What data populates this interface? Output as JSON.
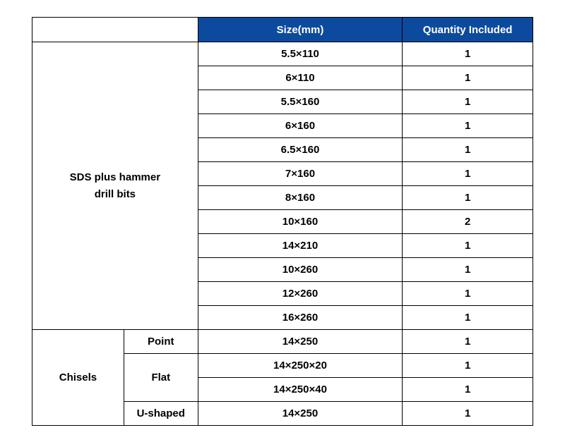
{
  "table": {
    "header": {
      "size": "Size(mm)",
      "quantity": "Quantity Included"
    },
    "colors": {
      "header_bg": "#0c4a9e",
      "header_text": "#ffffff",
      "border": "#000000",
      "cell_bg": "#ffffff",
      "cell_text": "#000000"
    },
    "font": {
      "family": "Arial",
      "size_pt": 15,
      "weight": "bold"
    },
    "sections": [
      {
        "category": "SDS plus hammer drill bits",
        "rows": [
          {
            "size": "5.5×110",
            "qty": "1"
          },
          {
            "size": "6×110",
            "qty": "1"
          },
          {
            "size": "5.5×160",
            "qty": "1"
          },
          {
            "size": "6×160",
            "qty": "1"
          },
          {
            "size": "6.5×160",
            "qty": "1"
          },
          {
            "size": "7×160",
            "qty": "1"
          },
          {
            "size": "8×160",
            "qty": "1"
          },
          {
            "size": "10×160",
            "qty": "2"
          },
          {
            "size": "14×210",
            "qty": "1"
          },
          {
            "size": "10×260",
            "qty": "1"
          },
          {
            "size": "12×260",
            "qty": "1"
          },
          {
            "size": "16×260",
            "qty": "1"
          }
        ]
      },
      {
        "category": "Chisels",
        "subgroups": [
          {
            "sub": "Point",
            "rows": [
              {
                "size": "14×250",
                "qty": "1"
              }
            ]
          },
          {
            "sub": "Flat",
            "rows": [
              {
                "size": "14×250×20",
                "qty": "1"
              },
              {
                "size": "14×250×40",
                "qty": "1"
              }
            ]
          },
          {
            "sub": "U-shaped",
            "rows": [
              {
                "size": "14×250",
                "qty": "1"
              }
            ]
          }
        ]
      }
    ]
  }
}
